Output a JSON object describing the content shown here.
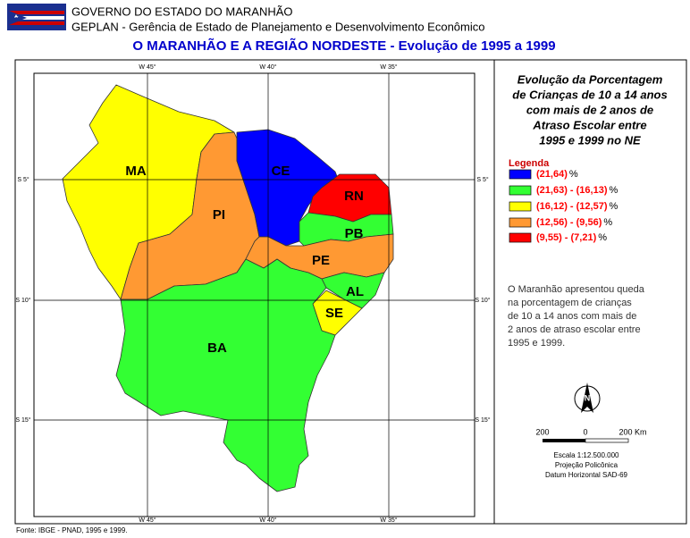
{
  "header": {
    "line1": "GOVERNO DO ESTADO DO MARANHÃO",
    "line2": "GEPLAN - Gerência de Estado de Planejamento e Desenvolvimento Econômico",
    "title": "O MARANHÃO E A REGIÃO NORDESTE - Evolução de 1995 a 1999"
  },
  "map": {
    "states": [
      "MA",
      "PI",
      "CE",
      "RN",
      "PB",
      "PE",
      "AL",
      "SE",
      "BA"
    ],
    "grid": {
      "top": [
        "W 45°",
        "W 40°",
        "W 35°"
      ],
      "bottom": [
        "W 45°",
        "W 40°",
        "W 35°"
      ],
      "left": [
        "S 5°",
        "S 10°",
        "S 15°"
      ],
      "right": [
        "S 5°",
        "S 10°",
        "S 15°"
      ]
    }
  },
  "panel": {
    "title": [
      "Evolução da Porcentagem",
      "de Crianças de 10 a 14 anos",
      "com mais de 2 anos de",
      "Atraso Escolar entre",
      "1995 e 1999 no NE"
    ],
    "legend_title": "Legenda",
    "legend": [
      {
        "range": "(21,64)",
        "unit": "%"
      },
      {
        "range": "(21,63) - (16,13)",
        "unit": "%"
      },
      {
        "range": "(16,12) - (12,57)",
        "unit": "%"
      },
      {
        "range": "(12,56) - (9,56)",
        "unit": "%"
      },
      {
        "range": "(9,55) - (7,21)",
        "unit": "%"
      }
    ],
    "note": [
      "O Maranhão apresentou queda",
      "na porcentagem de crianças",
      "de 10 a 14 anos com mais de",
      "2 anos de atraso escolar entre",
      "1995 e 1999."
    ],
    "north": "N",
    "scale_labels": [
      "200",
      "0",
      "200 Km"
    ],
    "scale_text": [
      "Escala 1:12.500.000",
      "Projeção Policônica",
      "Datum Horizontal SAD-69"
    ]
  },
  "source": "Fonte: IBGE - PNAD, 1995 e 1999."
}
